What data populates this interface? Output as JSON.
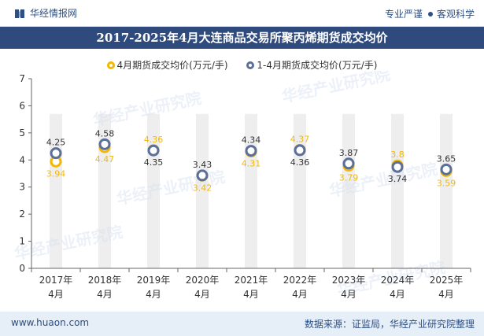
{
  "header": {
    "brand": "华经情报网",
    "slogan_left": "专业严谨",
    "slogan_right": "客观科学"
  },
  "footer": {
    "website": "www.huaon.com",
    "source": "数据来源：证监局，华经产业研究院整理"
  },
  "colors": {
    "april": "#f5b800",
    "jan_apr": "#5b6f99",
    "title_bg": "#2f4a7c",
    "column": "#eeeeee"
  },
  "chart_data": {
    "type": "scatter",
    "title": "2017-2025年4月大连商品交易所聚丙烯期货成交均价",
    "x": [
      "2017年4月",
      "2018年4月",
      "2019年4月",
      "2020年4月",
      "2021年4月",
      "2022年4月",
      "2023年4月",
      "2024年4月",
      "2025年4月"
    ],
    "categories_lines": [
      [
        "2017年",
        "4月"
      ],
      [
        "2018年",
        "4月"
      ],
      [
        "2019年",
        "4月"
      ],
      [
        "2020年",
        "4月"
      ],
      [
        "2021年",
        "4月"
      ],
      [
        "2022年",
        "4月"
      ],
      [
        "2023年",
        "4月"
      ],
      [
        "2024年",
        "4月"
      ],
      [
        "2025年",
        "4月"
      ]
    ],
    "series": [
      {
        "name": "4月期货成交均价(万元/手)",
        "values": [
          3.94,
          4.47,
          4.36,
          3.42,
          4.31,
          4.37,
          3.79,
          3.8,
          3.59
        ]
      },
      {
        "name": "1-4月期货成交均价(万元/手)",
        "values": [
          4.25,
          4.58,
          4.35,
          3.43,
          4.34,
          4.36,
          3.87,
          3.74,
          3.65
        ]
      }
    ],
    "ylim": [
      0,
      7
    ],
    "yticks": [
      0,
      1,
      2,
      3,
      4,
      5,
      6,
      7
    ],
    "legend_position": "top-center",
    "grid": false
  }
}
